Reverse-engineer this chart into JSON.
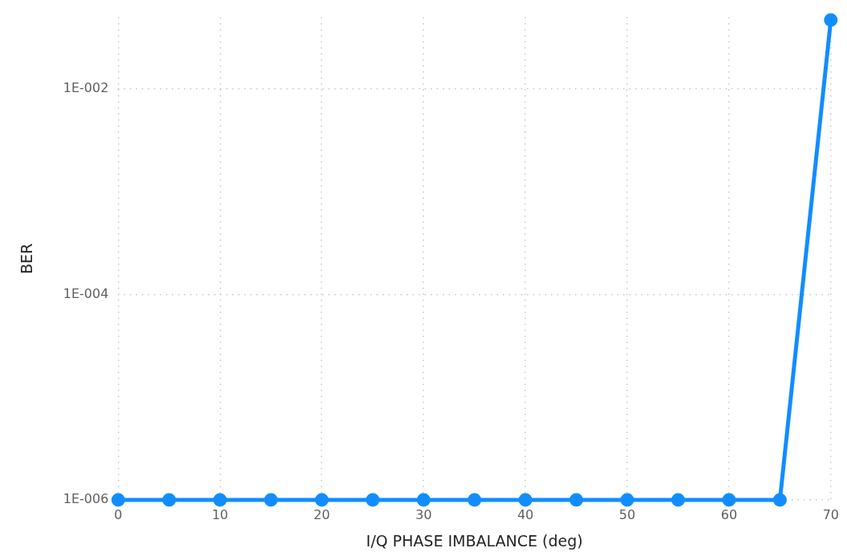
{
  "chart_data": {
    "type": "line",
    "xlabel": "I/Q PHASE IMBALANCE (deg)",
    "ylabel": "BER",
    "x": [
      0,
      5,
      10,
      15,
      20,
      25,
      30,
      35,
      40,
      45,
      50,
      55,
      60,
      65,
      70
    ],
    "series": [
      {
        "color": "#118dff",
        "values": [
          1e-06,
          1e-06,
          1e-06,
          1e-06,
          1e-06,
          1e-06,
          1e-06,
          1e-06,
          1e-06,
          1e-06,
          1e-06,
          1e-06,
          1e-06,
          1e-06,
          0.047
        ]
      }
    ],
    "xlim": [
      0,
      70
    ],
    "xticks": [
      0,
      10,
      20,
      30,
      40,
      50,
      60,
      70
    ],
    "ylim": [
      1e-06,
      0.05
    ],
    "yticks": [
      {
        "value": 1e-06,
        "label": "1E-006"
      },
      {
        "value": 0.0001,
        "label": "1E-004"
      },
      {
        "value": 0.01,
        "label": "1E-002"
      }
    ],
    "log": "y",
    "grid": true,
    "marker": "circle",
    "line_style": "solid",
    "legend": false
  }
}
